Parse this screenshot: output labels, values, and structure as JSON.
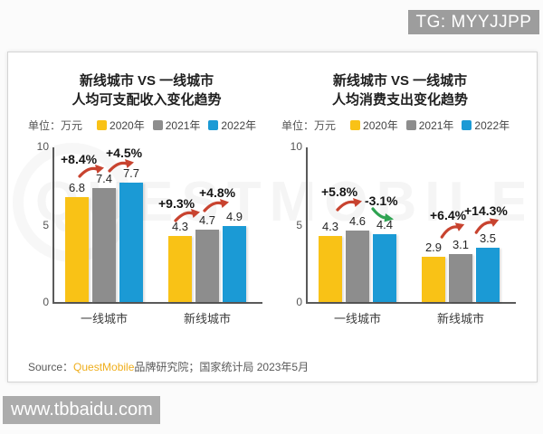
{
  "overlays": {
    "tg_badge": "TG: MYYJJPP",
    "site_watermark": "www.tbbaidu.com",
    "brand_watermark": "QUESTMOBILE"
  },
  "source": {
    "prefix": "Source：",
    "brand": "QuestMobile",
    "rest": "品牌研究院；国家统计局 2023年5月"
  },
  "colors": {
    "year2020": "#F9C216",
    "year2021": "#8D8D8D",
    "year2022": "#1B9AD5",
    "arrow_up": "#C8432F",
    "arrow_down": "#2FA352",
    "brand": "#EFAE1C"
  },
  "chart_data": [
    {
      "type": "bar",
      "title_line1": "新线城市 VS 一线城市",
      "title_line2": "人均可支配收入变化趋势",
      "unit_label": "单位：万元",
      "legend": [
        "2020年",
        "2021年",
        "2022年"
      ],
      "categories": [
        "一线城市",
        "新线城市"
      ],
      "series": [
        {
          "name": "2020年",
          "values": [
            6.8,
            4.3
          ]
        },
        {
          "name": "2021年",
          "values": [
            7.4,
            4.7
          ]
        },
        {
          "name": "2022年",
          "values": [
            7.7,
            4.9
          ]
        }
      ],
      "ylim": [
        0,
        10
      ],
      "yticks": [
        0,
        5,
        10
      ],
      "grid": false,
      "legend_position": "top",
      "annotations": [
        {
          "label": "+8.4%",
          "trend": "up",
          "category": "一线城市"
        },
        {
          "label": "+4.5%",
          "trend": "up",
          "category": "一线城市"
        },
        {
          "label": "+9.3%",
          "trend": "up",
          "category": "新线城市"
        },
        {
          "label": "+4.8%",
          "trend": "up",
          "category": "新线城市"
        }
      ]
    },
    {
      "type": "bar",
      "title_line1": "新线城市 VS 一线城市",
      "title_line2": "人均消费支出变化趋势",
      "unit_label": "单位：万元",
      "legend": [
        "2020年",
        "2021年",
        "2022年"
      ],
      "categories": [
        "一线城市",
        "新线城市"
      ],
      "series": [
        {
          "name": "2020年",
          "values": [
            4.3,
            2.9
          ]
        },
        {
          "name": "2021年",
          "values": [
            4.6,
            3.1
          ]
        },
        {
          "name": "2022年",
          "values": [
            4.4,
            3.5
          ]
        }
      ],
      "ylim": [
        0,
        10
      ],
      "yticks": [
        0,
        5,
        10
      ],
      "grid": false,
      "legend_position": "top",
      "annotations": [
        {
          "label": "+5.8%",
          "trend": "up",
          "category": "一线城市"
        },
        {
          "label": "-3.1%",
          "trend": "down",
          "category": "一线城市"
        },
        {
          "label": "+6.4%",
          "trend": "up",
          "category": "新线城市"
        },
        {
          "label": "+14.3%",
          "trend": "up",
          "category": "新线城市"
        }
      ]
    }
  ]
}
